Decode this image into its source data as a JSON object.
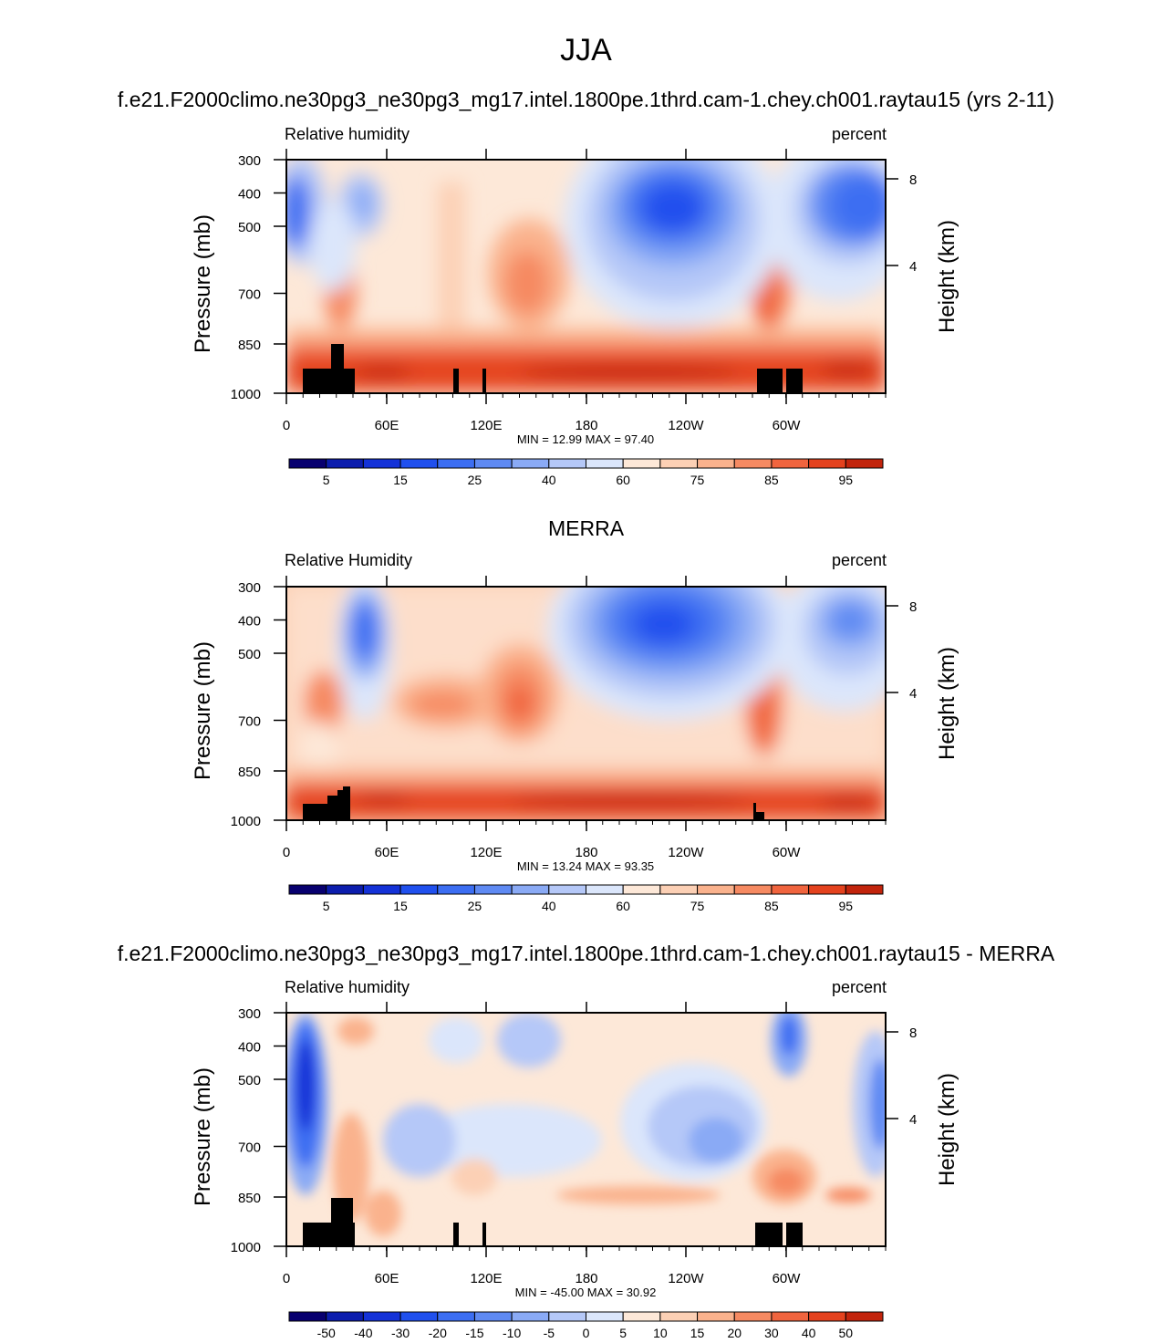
{
  "title": "JJA",
  "chart_data": [
    {
      "type": "heatmap",
      "title": "f.e21.F2000climo.ne30pg3_ne30pg3_mg17.intel.1800pe.1thrd.cam-1.chey.ch001.raytau15 (yrs 2-11)",
      "left_string": "Relative humidity",
      "right_string": "percent",
      "ylabel": "Pressure (mb)",
      "ylabel_right": "Height (km)",
      "x_ticks": [
        "0",
        "60E",
        "120E",
        "180",
        "120W",
        "60W"
      ],
      "y_ticks": [
        "300",
        "400",
        "500",
        "700",
        "850",
        "1000"
      ],
      "y2_ticks": [
        "8",
        "4"
      ],
      "stats": "MIN =  12.99  MAX =  97.40",
      "colorbar_labels": [
        "5",
        "15",
        "25",
        "40",
        "60",
        "75",
        "85",
        "95"
      ],
      "min": 12.99,
      "max": 97.4
    },
    {
      "type": "heatmap",
      "title": "MERRA",
      "left_string": "Relative Humidity",
      "right_string": "percent",
      "ylabel": "Pressure (mb)",
      "ylabel_right": "Height (km)",
      "x_ticks": [
        "0",
        "60E",
        "120E",
        "180",
        "120W",
        "60W"
      ],
      "y_ticks": [
        "300",
        "400",
        "500",
        "700",
        "850",
        "1000"
      ],
      "y2_ticks": [
        "8",
        "4"
      ],
      "stats": "MIN =  13.24  MAX =  93.35",
      "colorbar_labels": [
        "5",
        "15",
        "25",
        "40",
        "60",
        "75",
        "85",
        "95"
      ],
      "min": 13.24,
      "max": 93.35
    },
    {
      "type": "heatmap",
      "title": "f.e21.F2000climo.ne30pg3_ne30pg3_mg17.intel.1800pe.1thrd.cam-1.chey.ch001.raytau15 - MERRA",
      "left_string": "Relative humidity",
      "right_string": "percent",
      "ylabel": "Pressure (mb)",
      "ylabel_right": "Height (km)",
      "x_ticks": [
        "0",
        "60E",
        "120E",
        "180",
        "120W",
        "60W"
      ],
      "y_ticks": [
        "300",
        "400",
        "500",
        "700",
        "850",
        "1000"
      ],
      "y2_ticks": [
        "8",
        "4"
      ],
      "stats": "MIN = -45.00  MAX =  30.92",
      "colorbar_labels": [
        "-50",
        "-40",
        "-30",
        "-20",
        "-15",
        "-10",
        "-5",
        "0",
        "5",
        "10",
        "15",
        "20",
        "30",
        "40",
        "50"
      ],
      "min": -45.0,
      "max": 30.92
    }
  ],
  "colors": {
    "palette_16": [
      "#08006f",
      "#0c1dad",
      "#1432d7",
      "#2050ee",
      "#3c6ef2",
      "#5f8af3",
      "#8aaaf5",
      "#b5c8f8",
      "#dbe6fb",
      "#fde8d8",
      "#fcd0b5",
      "#fab28d",
      "#f68a62",
      "#f0643e",
      "#e4421e",
      "#c2240c",
      "#8a0b02"
    ],
    "palette_rh": [
      "#08006f",
      "#0c1dad",
      "#1432d7",
      "#2050ee",
      "#3c6ef2",
      "#5f8af3",
      "#8aaaf5",
      "#b5c8f8",
      "#dbe6fb",
      "#fde8d8",
      "#fcd0b5",
      "#fab28d",
      "#f68a62",
      "#f0643e",
      "#e4421e",
      "#c2240c",
      "#8a0b02"
    ],
    "terrain": "#000000"
  }
}
